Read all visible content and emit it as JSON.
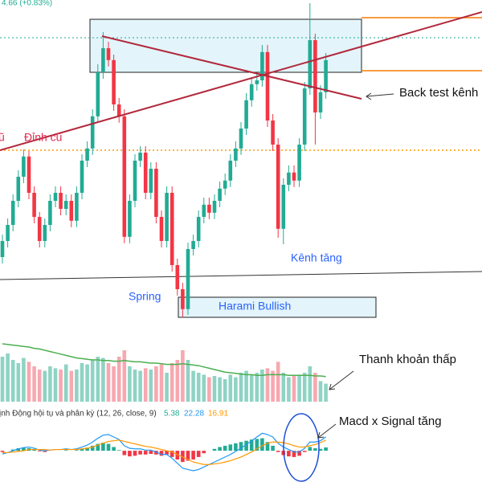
{
  "chart_data": {
    "type": "candlestick",
    "header": "4.66 (+0.83%)",
    "ylim": [
      0,
      100
    ],
    "up_color": "#22ab94",
    "down_color": "#f23645",
    "open": [
      20,
      25,
      30,
      37.5,
      45,
      51.3,
      40,
      32.5,
      25,
      30,
      37.5,
      40,
      35,
      37.5,
      31.3,
      40,
      50,
      53.8,
      63.8,
      77.5,
      85,
      81.3,
      67.5,
      63.8,
      26.3,
      37.5,
      50,
      52.5,
      40,
      47.5,
      32.5,
      25,
      40,
      17.5,
      10,
      3.8,
      22.5,
      25,
      32.5,
      36.3,
      33.8,
      37.5,
      41.3,
      43.8,
      50,
      53.8,
      60,
      68.8,
      73.8,
      75,
      83.8,
      62.5,
      55,
      28.8,
      42.5,
      46.3,
      43.8,
      55,
      72.5,
      87.5,
      65,
      71.3
    ],
    "high": [
      27,
      32,
      39.5,
      47,
      53.5,
      53,
      42,
      34,
      32,
      39.5,
      42,
      42,
      39.5,
      39.5,
      42,
      52,
      56,
      66,
      80,
      90,
      87,
      83,
      69.5,
      66,
      39.5,
      52,
      54.5,
      54.5,
      49.5,
      49.5,
      34.5,
      42,
      42,
      19.5,
      12,
      24.5,
      27,
      34.5,
      38.5,
      38.5,
      39.5,
      43.5,
      46,
      52,
      56,
      62,
      71,
      76,
      77,
      86,
      86,
      64.5,
      57,
      44.5,
      48.5,
      48.5,
      57,
      74.5,
      99,
      89.5,
      73.5,
      83.5
    ],
    "low": [
      18,
      23,
      28,
      35.5,
      43,
      38,
      30.5,
      23,
      23,
      28,
      35.5,
      33,
      33,
      29.3,
      29.3,
      38,
      48,
      51.8,
      61.8,
      75.5,
      79.3,
      65.5,
      61.8,
      24.3,
      24.3,
      35.5,
      48,
      38,
      38,
      30.5,
      23,
      23,
      15.5,
      8,
      1.2,
      2,
      20.5,
      23,
      30.5,
      31.8,
      31.8,
      35.5,
      39.3,
      41.8,
      48,
      51.8,
      58,
      66.8,
      71.8,
      73,
      60.5,
      53,
      26,
      24,
      40.5,
      41.8,
      41.8,
      53,
      70.5,
      55,
      63,
      69.3
    ],
    "close": [
      25,
      30,
      37.5,
      45,
      51.3,
      40,
      32.5,
      25,
      30,
      37.5,
      40,
      35,
      37.5,
      31.3,
      40,
      50,
      53.8,
      63.8,
      77.5,
      85,
      81.3,
      67.5,
      63.8,
      26.3,
      37.5,
      50,
      52.5,
      40,
      47.5,
      32.5,
      25,
      40,
      17.5,
      10,
      3.8,
      22.5,
      25,
      32.5,
      36.3,
      33.8,
      37.5,
      41.3,
      43.8,
      50,
      53.8,
      60,
      68.8,
      73.8,
      75,
      83.8,
      62.5,
      55,
      28.8,
      42.5,
      46.3,
      43.8,
      55,
      72.5,
      87.5,
      65,
      71.3,
      81.3
    ],
    "volume": {
      "ylim": [
        0,
        100
      ],
      "up_color": "#8fd3c4",
      "down_color": "#f7a8b0",
      "ma_color": "#4caf50",
      "values": [
        70,
        75,
        65,
        60,
        68,
        62,
        55,
        50,
        48,
        55,
        52,
        50,
        58,
        48,
        50,
        60,
        58,
        65,
        70,
        68,
        60,
        55,
        70,
        80,
        55,
        50,
        48,
        52,
        50,
        55,
        58,
        45,
        60,
        65,
        80,
        65,
        48,
        45,
        42,
        38,
        40,
        38,
        35,
        42,
        38,
        45,
        48,
        42,
        45,
        50,
        52,
        48,
        62,
        45,
        38,
        40,
        42,
        45,
        55,
        45,
        32,
        28
      ],
      "ma": [
        90,
        89,
        88,
        87,
        86,
        85,
        83,
        82,
        80,
        78,
        76,
        74,
        72,
        70,
        68,
        67,
        66,
        65,
        65,
        64,
        64,
        63,
        63,
        64,
        63,
        62,
        62,
        61,
        60,
        60,
        59,
        58,
        58,
        58,
        59,
        58,
        57,
        56,
        54,
        52,
        50,
        48,
        46,
        45,
        44,
        43,
        42,
        42,
        41,
        41,
        42,
        42,
        42,
        42,
        41,
        41,
        41,
        41,
        41,
        40,
        40,
        39
      ]
    },
    "macd": {
      "label": "ịnh Động hội tụ và phân kỳ (12, 26, close, 9)",
      "ylim": [
        -50,
        40
      ],
      "macd_color": "#2196f3",
      "signal_color": "#ff9800",
      "hist_up_color": "#22ab94",
      "hist_down_color": "#f23645",
      "histogram": [
        -2,
        0,
        2,
        4,
        5,
        4,
        2,
        -1,
        -2,
        0,
        0,
        0,
        1,
        0,
        1,
        3,
        5,
        8,
        11,
        13,
        11,
        6,
        1,
        -7,
        -9,
        -8,
        -6,
        -6,
        -5,
        -6,
        -8,
        -6,
        -10,
        -14,
        -18,
        -16,
        -14,
        -10,
        -4,
        0,
        3,
        6,
        8,
        10,
        12,
        14,
        16,
        18,
        19,
        20,
        14,
        8,
        -2,
        -7,
        -9,
        -10,
        -8,
        -2,
        6,
        4,
        3,
        5.38
      ],
      "macd": [
        -5,
        -3,
        0,
        3,
        5,
        6,
        4,
        1,
        0,
        1,
        2,
        2,
        3,
        2,
        3,
        6,
        9,
        14,
        20,
        25,
        26,
        22,
        18,
        8,
        4,
        3,
        3,
        1,
        1,
        -2,
        -6,
        -6,
        -12,
        -20,
        -28,
        -30,
        -32,
        -30,
        -26,
        -22,
        -18,
        -14,
        -10,
        -6,
        -1,
        4,
        10,
        16,
        22,
        28,
        26,
        22,
        12,
        6,
        2,
        -2,
        -2,
        4,
        14,
        14,
        16,
        22.28
      ],
      "signal": [
        -3,
        -3,
        -2,
        -1,
        0,
        2,
        2,
        2,
        2,
        1,
        2,
        2,
        2,
        2,
        2,
        3,
        4,
        6,
        9,
        12,
        15,
        16,
        17,
        15,
        13,
        11,
        9,
        7,
        6,
        4,
        2,
        0,
        -2,
        -6,
        -10,
        -14,
        -18,
        -20,
        -22,
        -22,
        -21,
        -20,
        -18,
        -16,
        -13,
        -10,
        -6,
        -2,
        3,
        8,
        12,
        14,
        14,
        13,
        11,
        8,
        6,
        6,
        8,
        10,
        13,
        16.91
      ]
    },
    "annotations": {
      "left_label": "ũ",
      "previous_peak": "Đỉnh cũ",
      "back_test": "Back test kênh",
      "channel": "Kênh tăng",
      "spring": "Spring",
      "harami": "Harami Bullish",
      "low_liquidity": "Thanh khoản thấp",
      "macd_cross": "Macd x Signal tăng"
    }
  }
}
